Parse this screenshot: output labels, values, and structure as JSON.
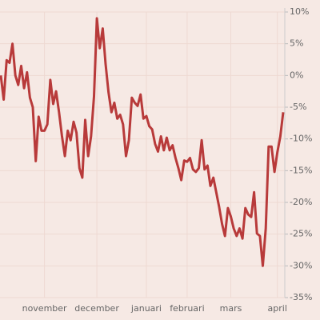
{
  "chart_data": {
    "type": "line",
    "categories": [
      null,
      null,
      null,
      null,
      null,
      null,
      null,
      null,
      null,
      null,
      null,
      null,
      null,
      null,
      null,
      "november",
      null,
      null,
      null,
      null,
      null,
      null,
      null,
      null,
      null,
      null,
      null,
      null,
      null,
      null,
      null,
      null,
      null,
      "december",
      null,
      null,
      null,
      null,
      null,
      null,
      null,
      null,
      null,
      null,
      null,
      null,
      null,
      null,
      null,
      null,
      "januari",
      null,
      null,
      null,
      null,
      null,
      null,
      null,
      null,
      null,
      null,
      null,
      null,
      null,
      "februari",
      null,
      null,
      null,
      null,
      null,
      null,
      null,
      null,
      null,
      null,
      null,
      null,
      null,
      null,
      "mars",
      null,
      null,
      null,
      null,
      null,
      null,
      null,
      null,
      null,
      null,
      null,
      null,
      null,
      null,
      null,
      "april",
      null,
      null
    ],
    "series": [
      {
        "color": "#b83a3a",
        "values": [
          0,
          -3.8,
          2.4,
          2,
          5,
          0,
          -1.5,
          1.5,
          -2,
          0.5,
          -3.5,
          -5,
          -13.5,
          -6.5,
          -8.7,
          -8.7,
          -7.7,
          -0.7,
          -4.5,
          -2.5,
          -5.8,
          -9.5,
          -12.7,
          -8.7,
          -10.2,
          -7.3,
          -9,
          -14.6,
          -16.1,
          -7,
          -12.7,
          -9.6,
          -3.3,
          9,
          4.3,
          7.4,
          1.8,
          -2.6,
          -5.8,
          -4.3,
          -6.8,
          -6.2,
          -7.7,
          -12.7,
          -10.2,
          -3.5,
          -4.3,
          -4.8,
          -3,
          -6.8,
          -6.4,
          -8,
          -8.5,
          -10.8,
          -12,
          -9.6,
          -11.8,
          -9.8,
          -11.8,
          -11,
          -13,
          -14.6,
          -16.5,
          -13.4,
          -13.6,
          -13,
          -14.8,
          -15.2,
          -14.6,
          -10.2,
          -14.8,
          -14.2,
          -17.4,
          -16.1,
          -18.4,
          -20.7,
          -23.4,
          -25.3,
          -20.9,
          -22.2,
          -24.1,
          -25.3,
          -24.1,
          -25.7,
          -20.9,
          -21.9,
          -22.3,
          -18.4,
          -24.9,
          -25.3,
          -30,
          -24.1,
          -11.2,
          -11.2,
          -15.2,
          -12.1,
          -9.6,
          -5.8
        ]
      }
    ],
    "ylim": [
      -35,
      10
    ],
    "yticks": [
      {
        "value": 10,
        "label": "10%"
      },
      {
        "value": 5,
        "label": "5%"
      },
      {
        "value": 0,
        "label": "0%"
      },
      {
        "value": -5,
        "label": "-5%"
      },
      {
        "value": -10,
        "label": "-10%"
      },
      {
        "value": -15,
        "label": "-15%"
      },
      {
        "value": -20,
        "label": "-20%"
      },
      {
        "value": -25,
        "label": "-25%"
      },
      {
        "value": -30,
        "label": "-30%"
      },
      {
        "value": -35,
        "label": "-35%"
      }
    ],
    "grid": true
  }
}
